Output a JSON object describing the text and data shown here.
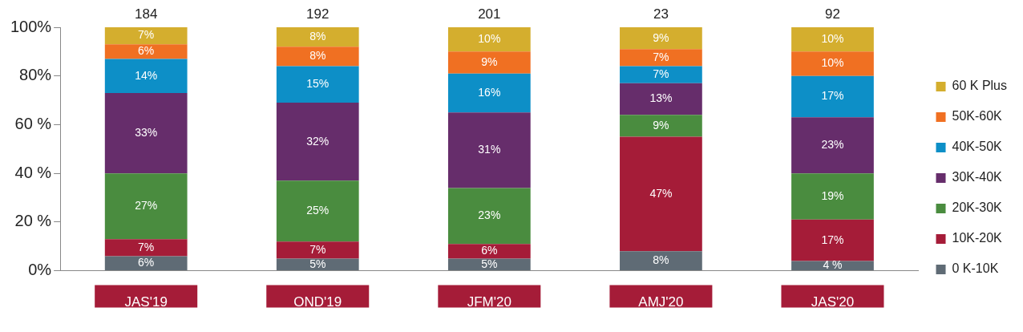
{
  "chart_data": {
    "type": "bar",
    "stacked": true,
    "legend": "right",
    "grid": false,
    "categories": [
      "JAS'19",
      "OND'19",
      "JFM'20",
      "AMJ'20",
      "JAS'20"
    ],
    "ylim": [
      0,
      100
    ],
    "yticks": [
      {
        "value": 0,
        "label": "0%"
      },
      {
        "value": 20,
        "label": "20 %"
      },
      {
        "value": 40,
        "label": "40 %"
      },
      {
        "value": 60,
        "label": "60 %"
      },
      {
        "value": 80,
        "label": "80%"
      },
      {
        "value": 100,
        "label": "100%"
      }
    ],
    "series": [
      {
        "name": "0 K-10K",
        "color": "#5f6b75",
        "values": [
          6,
          5,
          5,
          8,
          4
        ],
        "value_labels": [
          "6%",
          "5%",
          "5%",
          "8%",
          "4 %"
        ]
      },
      {
        "name": "10K-20K",
        "color": "#a51c38",
        "values": [
          7,
          7,
          6,
          47,
          17
        ],
        "value_labels": [
          "7%",
          "7%",
          "6%",
          "47%",
          "17%"
        ]
      },
      {
        "name": "20K-30K",
        "color": "#4a8c3f",
        "values": [
          27,
          25,
          23,
          9,
          19
        ],
        "value_labels": [
          "27%",
          "25%",
          "23%",
          "9%",
          "19%"
        ]
      },
      {
        "name": "30K-40K",
        "color": "#662d6b",
        "values": [
          33,
          32,
          31,
          13,
          23
        ],
        "value_labels": [
          "33%",
          "32%",
          "31%",
          "13%",
          "23%"
        ]
      },
      {
        "name": "40K-50K",
        "color": "#0d8fc7",
        "values": [
          14,
          15,
          16,
          7,
          17
        ],
        "value_labels": [
          "14%",
          "15%",
          "16%",
          "7%",
          "17%"
        ]
      },
      {
        "name": "50K-60K",
        "color": "#f07022",
        "values": [
          6,
          8,
          9,
          7,
          10
        ],
        "value_labels": [
          "6%",
          "8%",
          "9%",
          "7%",
          "10%"
        ]
      },
      {
        "name": "60 K Plus",
        "color": "#d4ae2e",
        "values": [
          7,
          8,
          10,
          9,
          10
        ],
        "value_labels": [
          "7%",
          "8%",
          "10%",
          "9%",
          "10%"
        ]
      }
    ],
    "annotations": [
      "184",
      "192",
      "201",
      "23",
      "92"
    ]
  }
}
